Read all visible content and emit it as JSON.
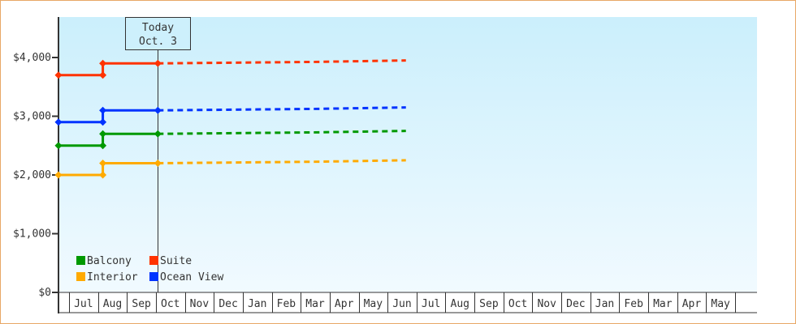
{
  "chart_data": {
    "type": "line",
    "title": "",
    "xlabel": "",
    "ylabel": "",
    "ylim": [
      0,
      4690
    ],
    "yticks": [
      "$0",
      "$1,000",
      "$2,000",
      "$3,000",
      "$4,000"
    ],
    "ytick_values": [
      0,
      1000,
      2000,
      3000,
      4000
    ],
    "xticks": [
      "Jul",
      "Aug",
      "Sep",
      "Oct",
      "Nov",
      "Dec",
      "Jan",
      "Feb",
      "Mar",
      "Apr",
      "May",
      "Jun",
      "Jul",
      "Aug",
      "Sep",
      "Oct",
      "Nov",
      "Dec",
      "Jan",
      "Feb",
      "Mar",
      "Apr",
      "May"
    ],
    "grid": false,
    "legend_placement": "bottom-left",
    "today_marker": {
      "line1": "Today",
      "line2": "Oct. 3",
      "date": "Oct 3"
    },
    "series": [
      {
        "name": "Balcony",
        "color": "#009900",
        "actual": [
          [
            "Jun 20",
            2500
          ],
          [
            "Aug 6",
            2500
          ],
          [
            "Aug 6",
            2700
          ],
          [
            "Oct 3",
            2700
          ]
        ],
        "forecast": [
          [
            "Oct 3",
            2700
          ],
          [
            "Mar 15",
            2725
          ],
          [
            "Jun 20",
            2750
          ]
        ]
      },
      {
        "name": "Suite",
        "color": "#ff3300",
        "actual": [
          [
            "Jun 20",
            3700
          ],
          [
            "Aug 6",
            3700
          ],
          [
            "Aug 6",
            3900
          ],
          [
            "Oct 3",
            3900
          ]
        ],
        "forecast": [
          [
            "Oct 3",
            3900
          ],
          [
            "Mar 15",
            3925
          ],
          [
            "Jun 20",
            3950
          ]
        ]
      },
      {
        "name": "Interior",
        "color": "#ffaa00",
        "actual": [
          [
            "Jun 20",
            2000
          ],
          [
            "Aug 6",
            2000
          ],
          [
            "Aug 6",
            2200
          ],
          [
            "Oct 3",
            2200
          ]
        ],
        "forecast": [
          [
            "Oct 3",
            2200
          ],
          [
            "Mar 15",
            2225
          ],
          [
            "Jun 20",
            2250
          ]
        ]
      },
      {
        "name": "Ocean View",
        "color": "#0033ff",
        "actual": [
          [
            "Jun 20",
            2900
          ],
          [
            "Aug 6",
            2900
          ],
          [
            "Aug 6",
            3100
          ],
          [
            "Oct 3",
            3100
          ]
        ],
        "forecast": [
          [
            "Oct 3",
            3100
          ],
          [
            "Mar 15",
            3125
          ],
          [
            "Jun 20",
            3150
          ]
        ]
      }
    ]
  }
}
